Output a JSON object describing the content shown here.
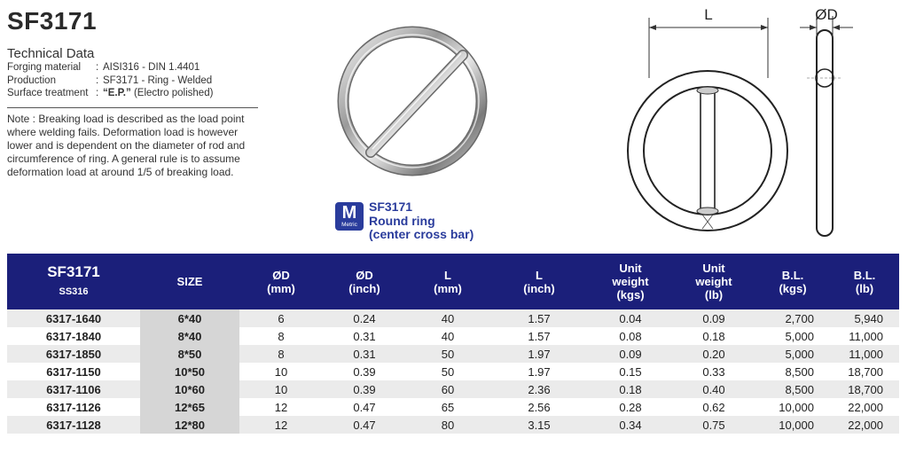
{
  "header": {
    "title": "SF3171",
    "tech_heading": "Technical Data",
    "tech_rows": [
      {
        "key": "Forging material",
        "sep": ":",
        "value": "AISI316 - DIN 1.4401",
        "bold": ""
      },
      {
        "key": "Production",
        "sep": ":",
        "value": "SF3171 - Ring - Welded",
        "bold": ""
      },
      {
        "key": "Surface treatment",
        "sep": ":",
        "value": " (Electro polished)",
        "bold": "“E.P.”"
      }
    ],
    "note": "Note : Breaking load is described as the load point where welding fails.  Deformation load is however lower and is dependent on the diameter of rod and circumference of ring. A general rule is to assume deformation load at around 1/5 of breaking load."
  },
  "product": {
    "badge_letter": "M",
    "badge_text": "Metric",
    "caption_lines": [
      "SF3171",
      "Round ring",
      "(center cross bar)"
    ]
  },
  "diagram": {
    "label_length": "L",
    "label_diameter": "ØD"
  },
  "table": {
    "headers": [
      {
        "main": "SF3171",
        "sub": "SS316"
      },
      {
        "lines": [
          "SIZE"
        ]
      },
      {
        "lines": [
          "ØD",
          "(mm)"
        ]
      },
      {
        "lines": [
          "ØD",
          "(inch)"
        ]
      },
      {
        "lines": [
          "L",
          "(mm)"
        ]
      },
      {
        "lines": [
          "L",
          "(inch)"
        ]
      },
      {
        "lines": [
          "Unit",
          "weight",
          "(kgs)"
        ]
      },
      {
        "lines": [
          "Unit",
          "weight",
          "(lb)"
        ]
      },
      {
        "lines": [
          "B.L.",
          "(kgs)"
        ]
      },
      {
        "lines": [
          "B.L.",
          "(lb)"
        ]
      }
    ],
    "rows": [
      [
        "6317-1640",
        "6*40",
        "6",
        "0.24",
        "40",
        "1.57",
        "0.04",
        "0.09",
        "2,700",
        "5,940"
      ],
      [
        "6317-1840",
        "8*40",
        "8",
        "0.31",
        "40",
        "1.57",
        "0.08",
        "0.18",
        "5,000",
        "11,000"
      ],
      [
        "6317-1850",
        "8*50",
        "8",
        "0.31",
        "50",
        "1.97",
        "0.09",
        "0.20",
        "5,000",
        "11,000"
      ],
      [
        "6317-1150",
        "10*50",
        "10",
        "0.39",
        "50",
        "1.97",
        "0.15",
        "0.33",
        "8,500",
        "18,700"
      ],
      [
        "6317-1106",
        "10*60",
        "10",
        "0.39",
        "60",
        "2.36",
        "0.18",
        "0.40",
        "8,500",
        "18,700"
      ],
      [
        "6317-1126",
        "12*65",
        "12",
        "0.47",
        "65",
        "2.56",
        "0.28",
        "0.62",
        "10,000",
        "22,000"
      ],
      [
        "6317-1128",
        "12*80",
        "12",
        "0.47",
        "80",
        "3.15",
        "0.34",
        "0.75",
        "10,000",
        "22,000"
      ]
    ]
  },
  "colors": {
    "header_bg": "#1b1f7a",
    "accent_blue": "#2a3c9c",
    "row_shade": "#ebebeb",
    "size_shade": "#d6d6d6"
  }
}
